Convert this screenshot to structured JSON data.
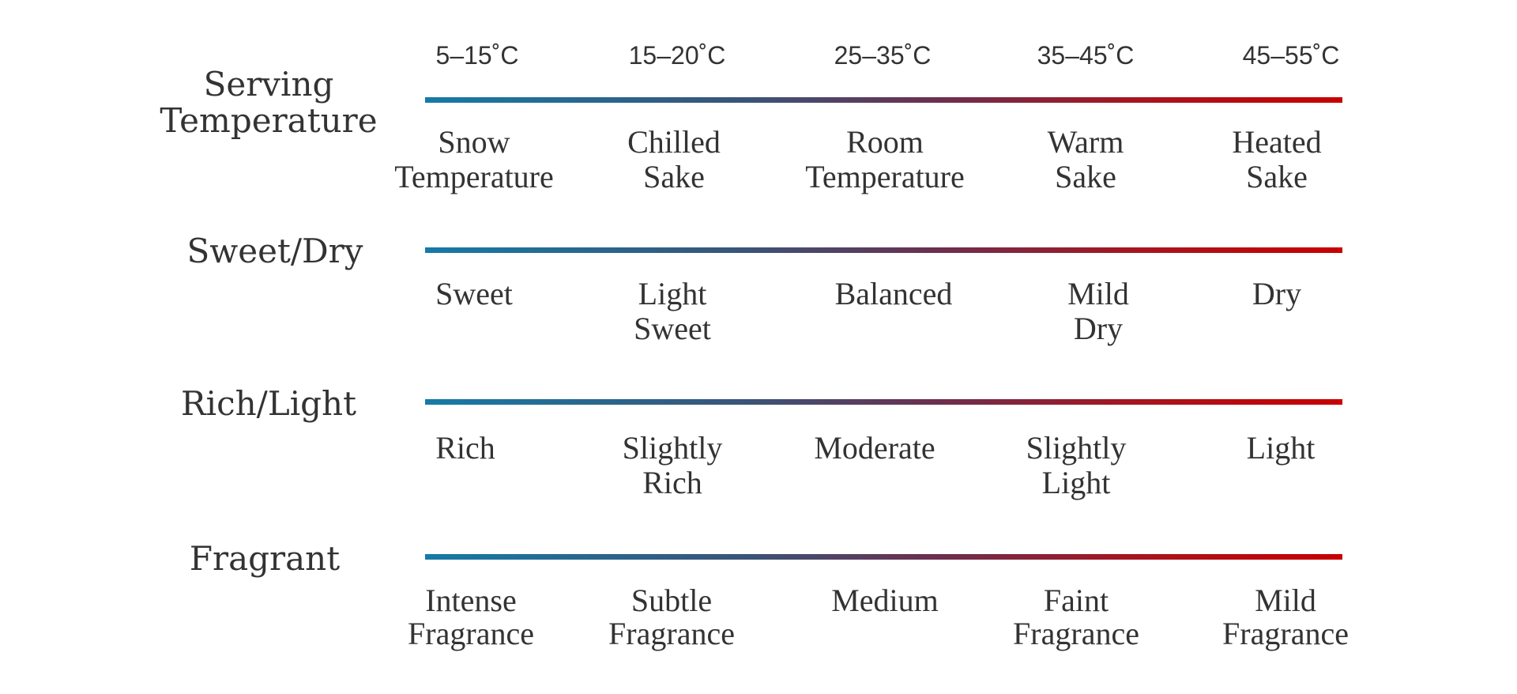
{
  "colors": {
    "gradient_start": "#167aa6",
    "gradient_end": "#c80000",
    "text": "#333333"
  },
  "rows": [
    {
      "category": "Serving\nTemperature",
      "temperatures": [
        "5–15˚C",
        "15–20˚C",
        "25–35˚C",
        "35–45˚C",
        "45–55˚C"
      ],
      "labels": [
        "Snow\nTemperature",
        "Chilled\nSake",
        "Room\nTemperature",
        "Warm\nSake",
        "Heated\nSake"
      ]
    },
    {
      "category": "Sweet/Dry",
      "labels": [
        "Sweet",
        "Light\nSweet",
        "Balanced",
        "Mild\nDry",
        "Dry"
      ]
    },
    {
      "category": "Rich/Light",
      "labels": [
        "Rich",
        "Slightly\nRich",
        "Moderate",
        "Slightly\nLight",
        "Light"
      ]
    },
    {
      "category": "Fragrant",
      "labels": [
        "Intense\nFragrance",
        "Subtle\nFragrance",
        "Medium",
        "Faint\nFragrance",
        "Mild\nFragrance"
      ]
    }
  ]
}
